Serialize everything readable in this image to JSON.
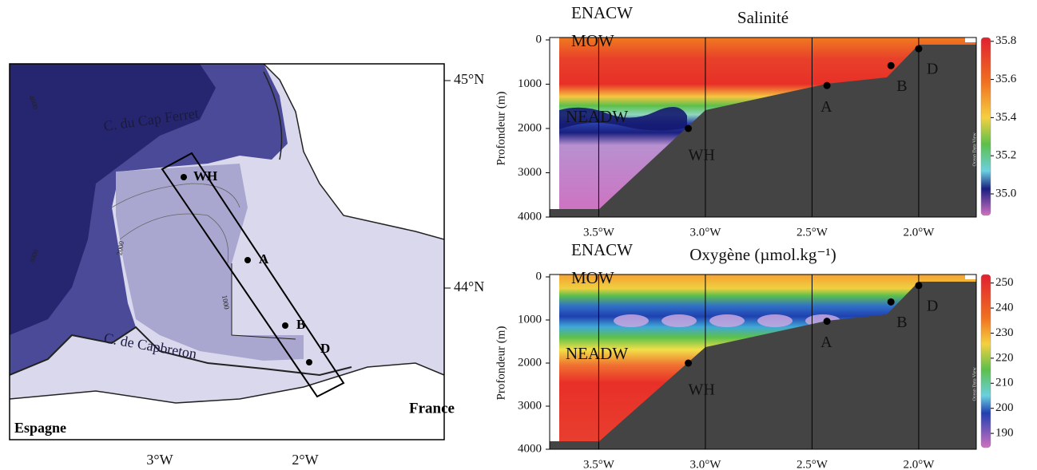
{
  "map": {
    "lat_labels": [
      "45°N",
      "44°N"
    ],
    "lon_labels": [
      "3°W",
      "2°W"
    ],
    "places": [
      "C. du Cap Ferret",
      "C. de Capbreton",
      "France",
      "Espagne"
    ],
    "isobaths": [
      "4000",
      "3000",
      "2000",
      "1000"
    ],
    "stations": [
      "WH",
      "A",
      "B",
      "D"
    ]
  },
  "sections": [
    {
      "title": "Salinité",
      "ylabel": "Profondeur (m)",
      "xlim": [
        -3.73,
        -1.73
      ],
      "ylim": [
        0,
        4000
      ],
      "invert_y": true,
      "xticks": [
        {
          "value": -3.5,
          "label": "3.5°W"
        },
        {
          "value": -3.0,
          "label": "3.0°W"
        },
        {
          "value": -2.5,
          "label": "2.5°W"
        },
        {
          "value": -2.0,
          "label": "2.0°W"
        }
      ],
      "yticks": [
        0,
        1000,
        2000,
        3000,
        4000
      ],
      "colorbar": {
        "lim": [
          34.887,
          35.82
        ],
        "ticks": [
          {
            "value": 35.0,
            "label": "35.0"
          },
          35.2,
          35.4,
          35.6,
          35.8
        ],
        "credit": "Ocean Data View"
      },
      "water_masses": [
        "ENACW",
        "MOW",
        "NEADW"
      ],
      "stations": [
        {
          "name": "WH",
          "lon": -3.08,
          "depth": 2000
        },
        {
          "name": "A",
          "lon": -2.43,
          "depth": 1030
        },
        {
          "name": "B",
          "lon": -2.13,
          "depth": 580
        },
        {
          "name": "D",
          "lon": -2.0,
          "depth": 200
        }
      ]
    },
    {
      "title": "Oxygène (µmol.kg⁻¹)",
      "ylabel": "Profondeur (m)",
      "xlim": [
        -3.73,
        -1.73
      ],
      "ylim": [
        0,
        4000
      ],
      "invert_y": true,
      "xticks": [
        {
          "value": -3.5,
          "label": "3.5°W"
        },
        {
          "value": -3.0,
          "label": "3.0°W"
        },
        {
          "value": -2.5,
          "label": "2.5°W"
        },
        {
          "value": -2.0,
          "label": "2.0°W"
        }
      ],
      "yticks": [
        0,
        1000,
        2000,
        3000,
        4000
      ],
      "colorbar": {
        "lim": [
          184.3,
          253.4
        ],
        "ticks": [
          190,
          200,
          210,
          220,
          230,
          240,
          250
        ],
        "credit": "Ocean Data View"
      },
      "water_masses": [
        "ENACW",
        "MOW",
        "NEADW"
      ],
      "stations": [
        {
          "name": "WH",
          "lon": -3.08,
          "depth": 2000
        },
        {
          "name": "A",
          "lon": -2.43,
          "depth": 1030
        },
        {
          "name": "B",
          "lon": -2.13,
          "depth": 580
        },
        {
          "name": "D",
          "lon": -2.0,
          "depth": 200
        }
      ]
    }
  ]
}
